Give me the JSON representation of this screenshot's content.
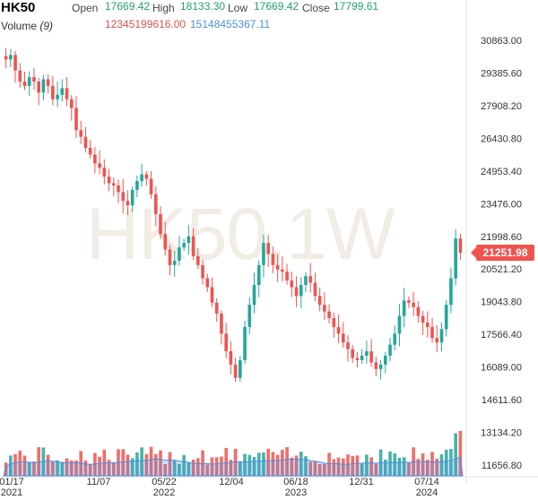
{
  "header": {
    "symbol": "HK50",
    "open_label": "Open",
    "open_value": "17669.42",
    "high_label": "High",
    "high_value": "18133.30",
    "low_label": "Low",
    "low_value": "17669.42",
    "close_label": "Close",
    "close_value": "17799.61",
    "volume_label": "Volume",
    "volume_period": "(9)",
    "volume_value_a": "12345199616.00",
    "volume_value_b": "15148455367.11"
  },
  "watermark": "HK50,1W",
  "last_price_badge": "21251.98",
  "colors": {
    "up": "#26a69a",
    "down": "#ef5350",
    "volume_ma": "#4a90e2",
    "badge": "#ef5350"
  },
  "chart_data": {
    "type": "candlestick",
    "y_axis": {
      "ticks": [
        "30863.00",
        "29385.60",
        "27908.20",
        "26430.80",
        "24953.40",
        "23476.00",
        "21998.60",
        "20521.20",
        "19043.80",
        "17566.40",
        "16089.00",
        "14611.60",
        "13134.20",
        "11656.80"
      ],
      "range": [
        11656.8,
        30863.0
      ]
    },
    "x_axis": {
      "ticks": [
        {
          "label": "01/17",
          "sub": "2021"
        },
        {
          "label": "11/07",
          "sub": ""
        },
        {
          "label": "05/22",
          "sub": "2022"
        },
        {
          "label": "12/04",
          "sub": ""
        },
        {
          "label": "06/18",
          "sub": "2023"
        },
        {
          "label": "12/31",
          "sub": ""
        },
        {
          "label": "07/14",
          "sub": "2024"
        }
      ]
    },
    "series": {
      "close_path": [
        30000,
        30200,
        29500,
        29000,
        28800,
        29200,
        29000,
        28500,
        29100,
        28800,
        28200,
        28400,
        28700,
        28200,
        27800,
        26800,
        26500,
        26000,
        25700,
        25300,
        25100,
        24700,
        24400,
        24300,
        24000,
        23600,
        23400,
        24100,
        24500,
        24800,
        24600,
        23900,
        23000,
        22100,
        21400,
        20700,
        20900,
        21500,
        21700,
        22000,
        21100,
        20700,
        20100,
        19700,
        19000,
        18500,
        17600,
        16800,
        16200,
        15600,
        16400,
        17900,
        18900,
        19800,
        20700,
        21700,
        21200,
        20700,
        20500,
        20400,
        20000,
        19700,
        19300,
        19800,
        20200,
        19900,
        19300,
        18900,
        18600,
        18300,
        17900,
        17600,
        17200,
        16900,
        16500,
        16400,
        16600,
        16800,
        16300,
        16000,
        16200,
        16600,
        17100,
        17600,
        18400,
        19100,
        19000,
        18800,
        18400,
        18100,
        17900,
        17400,
        17200,
        17800,
        18900,
        20100,
        21900,
        21251.98
      ],
      "volume_note": "volume bars with moving average area"
    }
  }
}
